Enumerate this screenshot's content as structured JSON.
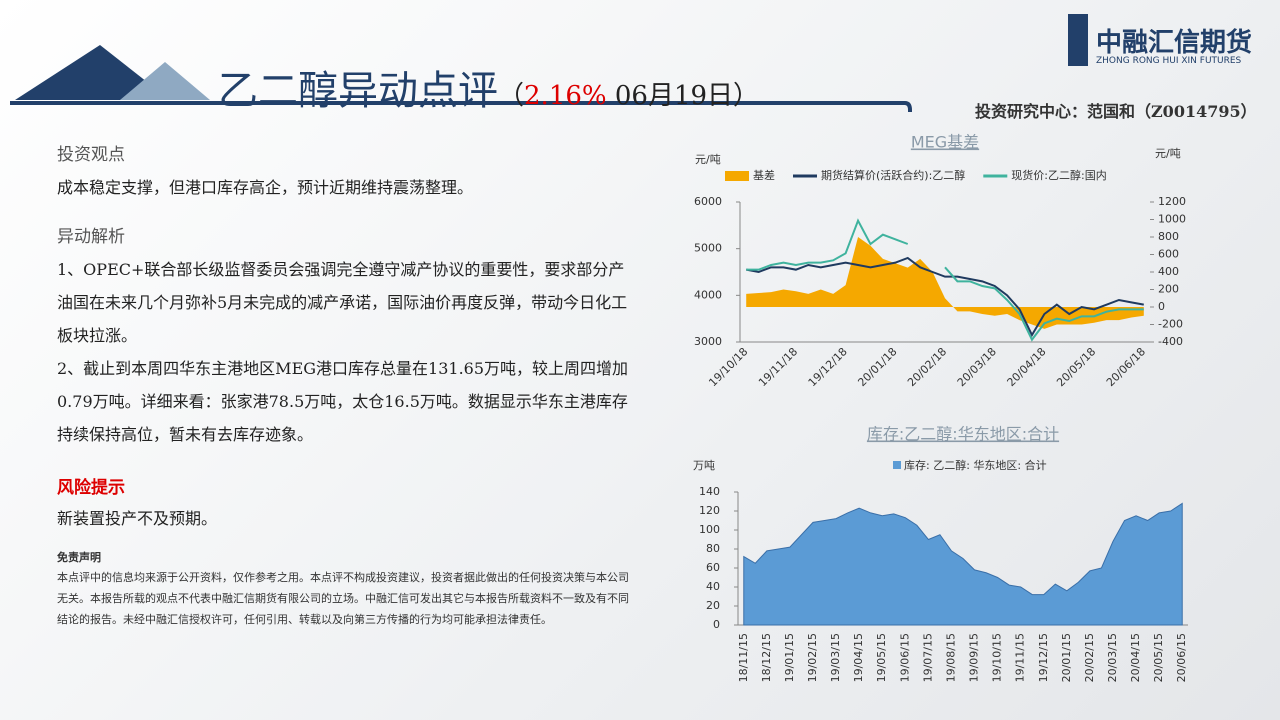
{
  "header": {
    "title": "乙二醇异动点评",
    "paren_open": "（",
    "change": "2.16%",
    "date": "06月19日）",
    "logo_cn": "中融汇信期货",
    "logo_en": "ZHONG RONG HUI XIN FUTURES",
    "author": "投资研究中心：范国和（Z0014795）"
  },
  "body": {
    "view_title": "投资观点",
    "view": "成本稳定支撑，但港口库存高企，预计近期维持震荡整理。",
    "analysis_title": "异动解析",
    "analysis": [
      "1、OPEC+联合部长级监督委员会强调完全遵守减产协议的重要性，要求部分产油国在未来几个月弥补5月未完成的减产承诺，国际油价再度反弹，带动今日化工板块拉涨。",
      "2、截止到本周四华东主港地区MEG港口库存总量在131.65万吨，较上周四增加0.79万吨。详细来看：张家港78.5万吨，太仓16.5万吨。数据显示华东主港库存持续保持高位，暂未有去库存迹象。"
    ],
    "risk_title": "风险提示",
    "risk": "新装置投产不及预期。",
    "disclaimer_title": "免责声明",
    "disclaimer": "本点评中的信息均来源于公开资料，仅作参考之用。本点评不构成投资建议，投资者据此做出的任何投资决策与本公司无关。本报告所载的观点不代表中融汇信期货有限公司的立场。中融汇信可发出其它与本报告所载资料不一致及有不同结论的报告。未经中融汇信授权许可，任何引用、转载以及向第三方传播的行为均可能承担法律责任。"
  },
  "chart_data": [
    {
      "type": "line",
      "title": "MEG基差",
      "y_label": "元/吨",
      "y2_label": "元/吨",
      "categories": [
        "19/10/18",
        null,
        null,
        null,
        "19/11/18",
        null,
        null,
        null,
        "19/12/18",
        null,
        null,
        null,
        "20/01/18",
        null,
        null,
        null,
        "20/02/18",
        null,
        null,
        null,
        "20/03/18",
        null,
        null,
        null,
        "20/04/18",
        null,
        null,
        null,
        "20/05/18",
        null,
        null,
        null,
        "20/06/18"
      ],
      "series": [
        {
          "name": "基差",
          "type": "area",
          "axis": "y2",
          "color": "#f5a800",
          "values": [
            150,
            160,
            170,
            200,
            180,
            150,
            200,
            150,
            250,
            800,
            700,
            550,
            500,
            450,
            550,
            400,
            100,
            -50,
            -50,
            -80,
            -100,
            -80,
            -150,
            -200,
            -250,
            -200,
            -200,
            -200,
            -180,
            -150,
            -150,
            -120,
            -100
          ]
        },
        {
          "name": "期货结算价(活跃合约):乙二醇",
          "type": "line",
          "color": "#1f3a5f",
          "values": [
            4550,
            4500,
            4600,
            4600,
            4550,
            4650,
            4600,
            4650,
            4700,
            4650,
            4600,
            4650,
            4700,
            4800,
            4600,
            4500,
            4400,
            4400,
            4350,
            4300,
            4200,
            4000,
            3700,
            3150,
            3600,
            3800,
            3600,
            3750,
            3700,
            3800,
            3900,
            3850,
            3800
          ]
        },
        {
          "name": "现货价:乙二醇:国内",
          "type": "line",
          "color": "#3fb39e",
          "values": [
            4550,
            4550,
            4650,
            4700,
            4650,
            4700,
            4700,
            4750,
            4900,
            5600,
            5100,
            5300,
            5200,
            5100,
            null,
            null,
            4600,
            4300,
            4300,
            4200,
            4150,
            3900,
            3600,
            3050,
            3400,
            3500,
            3450,
            3550,
            3550,
            3650,
            3700,
            3700,
            3700
          ]
        }
      ],
      "ylim": [
        3000,
        6000
      ],
      "yticks": [
        3000,
        4000,
        5000,
        6000
      ],
      "y2lim": [
        -400,
        1200
      ],
      "y2ticks": [
        -400,
        -200,
        0,
        200,
        400,
        600,
        800,
        1000,
        1200
      ]
    },
    {
      "type": "area",
      "title": "库存:乙二醇:华东地区:合计",
      "y_label": "万吨",
      "categories": [
        "18/11/15",
        null,
        "18/12/15",
        null,
        "19/01/15",
        null,
        "19/02/15",
        null,
        "19/03/15",
        null,
        "19/04/15",
        null,
        "19/05/15",
        null,
        "19/06/15",
        null,
        "19/07/15",
        null,
        "19/08/15",
        null,
        "19/09/15",
        null,
        "19/10/15",
        null,
        "19/11/15",
        null,
        "19/12/15",
        null,
        "20/01/15",
        null,
        "20/02/15",
        null,
        "20/03/15",
        null,
        "20/04/15",
        null,
        "20/05/15",
        null,
        "20/06/15"
      ],
      "series": [
        {
          "name": "库存: 乙二醇: 华东地区: 合计",
          "color": "#5b9bd5",
          "values": [
            72,
            65,
            78,
            80,
            82,
            95,
            108,
            110,
            112,
            118,
            123,
            118,
            115,
            117,
            113,
            105,
            90,
            95,
            78,
            70,
            58,
            55,
            50,
            42,
            40,
            32,
            32,
            43,
            36,
            45,
            57,
            60,
            88,
            110,
            115,
            110,
            118,
            120,
            128
          ]
        }
      ],
      "ylim": [
        0,
        140
      ],
      "yticks": [
        0,
        20,
        40,
        60,
        80,
        100,
        120,
        140
      ]
    }
  ]
}
